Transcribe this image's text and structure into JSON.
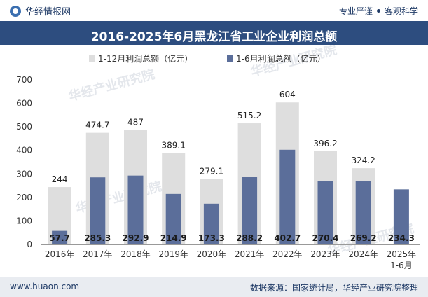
{
  "header": {
    "site_name": "华经情报网",
    "tagline_left": "专业严谨",
    "tagline_right": "客观科学"
  },
  "footer": {
    "url": "www.huaon.com",
    "source": "数据来源：国家统计局，华经产业研究院整理"
  },
  "watermark": "华经产业研究院",
  "colors": {
    "title_bar": "#2d4d7f",
    "series_full_year": "#dedede",
    "series_h1": "#5b6e9a",
    "footer_bg": "#e9ecf1"
  },
  "chart_data": {
    "type": "bar",
    "title": "2016-2025年6月黑龙江省工业企业利润总额",
    "categories": [
      "2016年",
      "2017年",
      "2018年",
      "2019年",
      "2020年",
      "2021年",
      "2022年",
      "2023年",
      "2024年",
      "2025年 1-6月"
    ],
    "series": [
      {
        "name": "1-12月利润总额（亿元）",
        "values": [
          244,
          474.7,
          487,
          389.1,
          279.1,
          515.2,
          604,
          396.2,
          324.2,
          null
        ]
      },
      {
        "name": "1-6月利润总额（亿元）",
        "values": [
          57.7,
          285.3,
          292.9,
          214.9,
          173.3,
          288.2,
          402.7,
          270.4,
          269.2,
          234.3
        ]
      }
    ],
    "yticks": [
      0,
      100,
      200,
      300,
      400,
      500,
      600,
      700
    ],
    "ylim": [
      0,
      700
    ],
    "xlabel": "",
    "ylabel": "",
    "legend_position": "top-center",
    "grid": false
  }
}
